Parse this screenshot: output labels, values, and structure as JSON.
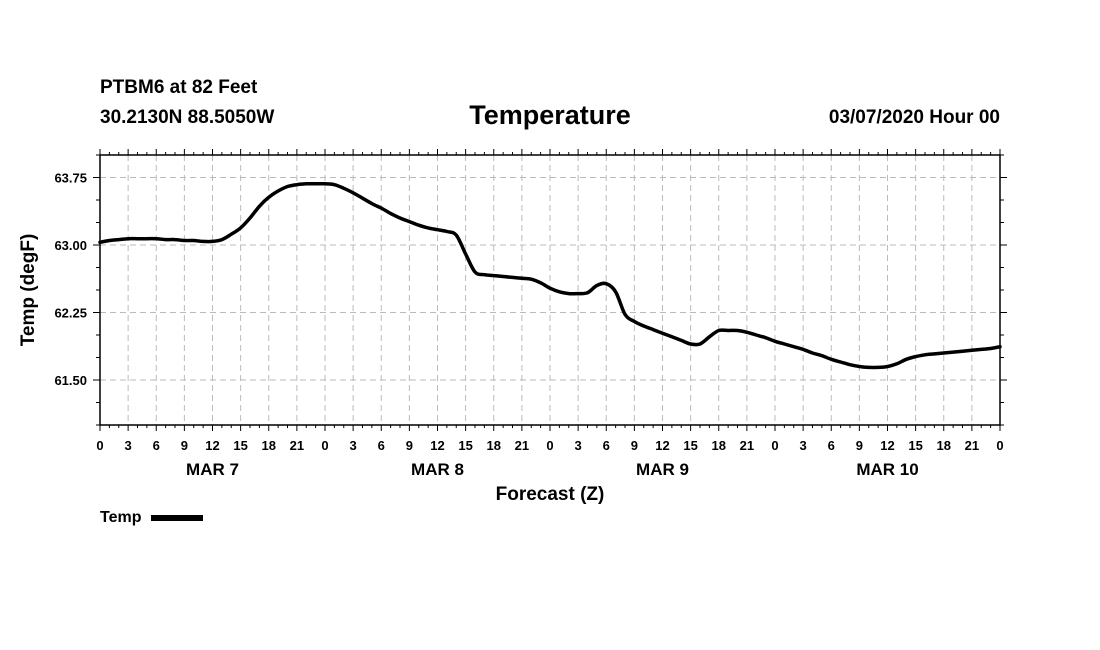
{
  "header": {
    "station": "PTBM6 at 82 Feet",
    "coords": "30.2130N 88.5050W",
    "title": "Temperature",
    "run": "03/07/2020 Hour 00"
  },
  "colors": {
    "line": "#000000",
    "grid": "#bbbbbb"
  },
  "chart_data": {
    "type": "line",
    "title": "Temperature",
    "xlabel": "Forecast (Z)",
    "ylabel": "Temp (degF)",
    "x_unit": "forecast hours from 03/07/2020 00Z",
    "xlim": [
      0,
      96
    ],
    "ylim": [
      61.0,
      64.0
    ],
    "x_tick_labels": [
      "0",
      "3",
      "6",
      "9",
      "12",
      "15",
      "18",
      "21",
      "0",
      "3",
      "6",
      "9",
      "12",
      "15",
      "18",
      "21",
      "0",
      "3",
      "6",
      "9",
      "12",
      "15",
      "18",
      "21",
      "0",
      "3",
      "6",
      "9",
      "12",
      "15",
      "18",
      "21",
      "0"
    ],
    "y_ticks": [
      61.5,
      62.25,
      63.0,
      63.75
    ],
    "y_tick_labels": [
      "61.50",
      "62.25",
      "63.00",
      "63.75"
    ],
    "day_labels": [
      {
        "label": "MAR 7",
        "hour": 12
      },
      {
        "label": "MAR 8",
        "hour": 36
      },
      {
        "label": "MAR 9",
        "hour": 60
      },
      {
        "label": "MAR 10",
        "hour": 84
      }
    ],
    "grid": true,
    "legend": "bottom-left",
    "series": [
      {
        "name": "Temp",
        "x": [
          0,
          1,
          2,
          3,
          4,
          5,
          6,
          7,
          8,
          9,
          10,
          11,
          12,
          13,
          14,
          15,
          16,
          17,
          18,
          19,
          20,
          21,
          22,
          23,
          24,
          25,
          26,
          27,
          28,
          29,
          30,
          31,
          32,
          33,
          34,
          35,
          36,
          37,
          38,
          39,
          40,
          41,
          42,
          43,
          44,
          45,
          46,
          47,
          48,
          49,
          50,
          51,
          52,
          53,
          54,
          55,
          56,
          57,
          58,
          59,
          60,
          61,
          62,
          63,
          64,
          65,
          66,
          67,
          68,
          69,
          70,
          71,
          72,
          73,
          74,
          75,
          76,
          77,
          78,
          79,
          80,
          81,
          82,
          83,
          84,
          85,
          86,
          87,
          88,
          89,
          90,
          91,
          92,
          93,
          94,
          95,
          96
        ],
        "values": [
          63.03,
          63.05,
          63.06,
          63.07,
          63.07,
          63.07,
          63.07,
          63.06,
          63.06,
          63.05,
          63.05,
          63.04,
          63.04,
          63.06,
          63.12,
          63.19,
          63.3,
          63.43,
          63.53,
          63.6,
          63.65,
          63.67,
          63.68,
          63.68,
          63.68,
          63.67,
          63.63,
          63.58,
          63.52,
          63.46,
          63.41,
          63.35,
          63.3,
          63.26,
          63.22,
          63.19,
          63.17,
          63.15,
          63.11,
          62.9,
          62.7,
          62.67,
          62.66,
          62.65,
          62.64,
          62.63,
          62.62,
          62.58,
          62.52,
          62.48,
          62.46,
          62.46,
          62.47,
          62.55,
          62.57,
          62.48,
          62.23,
          62.15,
          62.1,
          62.06,
          62.02,
          61.98,
          61.94,
          61.9,
          61.9,
          61.98,
          62.05,
          62.05,
          62.05,
          62.03,
          62.0,
          61.97,
          61.93,
          61.9,
          61.87,
          61.84,
          61.8,
          61.77,
          61.73,
          61.7,
          61.67,
          61.65,
          61.64,
          61.64,
          61.65,
          61.68,
          61.73,
          61.76,
          61.78,
          61.79,
          61.8,
          61.81,
          61.82,
          61.83,
          61.84,
          61.85,
          61.87
        ]
      }
    ]
  },
  "legend": {
    "label": "Temp"
  }
}
